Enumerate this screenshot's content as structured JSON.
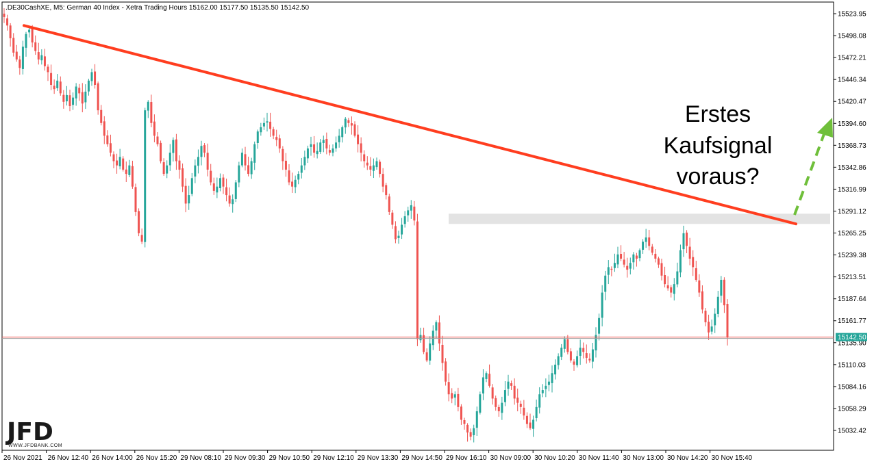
{
  "header": {
    "text": ".DE30CashXE, M5:  German 40 Index  - Xetra Trading Hours  15162.00 15177.50 15135.50 15142.50"
  },
  "logo": {
    "main": "JFD",
    "sub": "WWW.JFDBANK.COM"
  },
  "annotation": {
    "lines": [
      "Erstes",
      "Kaufsignal",
      "voraus?"
    ]
  },
  "colors": {
    "bull": "#26a69a",
    "bear": "#ef5350",
    "trendline": "#ff3d1f",
    "arrow": "#6fbf3a",
    "resistance_zone": "#e3e3e3",
    "price_line": "#ef5350",
    "price_tag": "#26a69a"
  },
  "chart_data": {
    "type": "candlestick",
    "symbol": ".DE30CashXE",
    "timeframe": "M5",
    "ohlc_header": {
      "open": 15162.0,
      "high": 15177.5,
      "low": 15135.5,
      "close": 15142.5
    },
    "ylim": [
      15010,
      15535
    ],
    "y_ticks": [
      "15523.95",
      "15498.08",
      "15472.21",
      "15446.34",
      "15420.47",
      "15394.60",
      "15368.73",
      "15342.86",
      "15316.99",
      "15291.12",
      "15265.25",
      "15239.38",
      "15213.51",
      "15187.64",
      "15161.77",
      "15135.90",
      "15110.03",
      "15084.16",
      "15058.29",
      "15032.42"
    ],
    "x_ticks": [
      "26 Nov 2021",
      "26 Nov 12:40",
      "26 Nov 14:00",
      "26 Nov 15:20",
      "29 Nov 08:10",
      "29 Nov 09:30",
      "29 Nov 10:50",
      "29 Nov 12:10",
      "29 Nov 13:30",
      "29 Nov 14:50",
      "29 Nov 16:10",
      "30 Nov 09:00",
      "30 Nov 10:20",
      "30 Nov 11:40",
      "30 Nov 13:00",
      "30 Nov 14:20",
      "30 Nov 15:40"
    ],
    "current_price": "15142.50",
    "current_price_value": 15142.5,
    "resistance_zone": {
      "low": 15276,
      "high": 15288
    },
    "trendline": {
      "start_value": 15510,
      "end_value": 15276
    },
    "path": [
      15520,
      15510,
      15495,
      15478,
      15470,
      15460,
      15485,
      15500,
      15505,
      15490,
      15480,
      15470,
      15475,
      15462,
      15455,
      15440,
      15435,
      15445,
      15430,
      15420,
      15428,
      15415,
      15425,
      15438,
      15430,
      15418,
      15432,
      15445,
      15455,
      15440,
      15410,
      15395,
      15380,
      15370,
      15360,
      15350,
      15345,
      15355,
      15340,
      15335,
      15345,
      15320,
      15290,
      15265,
      15255,
      15410,
      15420,
      15395,
      15380,
      15370,
      15350,
      15335,
      15345,
      15360,
      15375,
      15350,
      15340,
      15320,
      15300,
      15310,
      15330,
      15345,
      15355,
      15368,
      15360,
      15340,
      15325,
      15315,
      15320,
      15330,
      15320,
      15310,
      15300,
      15305,
      15325,
      15345,
      15360,
      15345,
      15335,
      15350,
      15370,
      15385,
      15390,
      15395,
      15397,
      15388,
      15380,
      15375,
      15365,
      15350,
      15340,
      15325,
      15320,
      15328,
      15335,
      15345,
      15355,
      15365,
      15370,
      15360,
      15362,
      15372,
      15375,
      15365,
      15360,
      15365,
      15372,
      15380,
      15390,
      15400,
      15395,
      15392,
      15380,
      15370,
      15360,
      15350,
      15345,
      15340,
      15345,
      15350,
      15335,
      15320,
      15310,
      15290,
      15275,
      15258,
      15262,
      15275,
      15285,
      15292,
      15298,
      15280,
      15140,
      15145,
      15125,
      15115,
      15135,
      15150,
      15160,
      15135,
      15112,
      15090,
      15075,
      15070,
      15075,
      15060,
      15045,
      15040,
      15030,
      15025,
      15035,
      15055,
      15075,
      15095,
      15100,
      15085,
      15070,
      15060,
      15055,
      15065,
      15080,
      15090,
      15085,
      15070,
      15065,
      15060,
      15050,
      15040,
      15035,
      15045,
      15060,
      15075,
      15080,
      15085,
      15090,
      15100,
      15110,
      15120,
      15130,
      15140,
      15125,
      15115,
      15110,
      15120,
      15130,
      15125,
      15118,
      15115,
      15128,
      15145,
      15165,
      15195,
      15215,
      15225,
      15222,
      15230,
      15240,
      15235,
      15228,
      15222,
      15230,
      15240,
      15235,
      15245,
      15255,
      15260,
      15250,
      15242,
      15235,
      15228,
      15215,
      15205,
      15200,
      15195,
      15205,
      15220,
      15245,
      15265,
      15250,
      15235,
      15225,
      15210,
      15195,
      15175,
      15160,
      15148,
      15155,
      15170,
      15190,
      15210,
      15180,
      15142
    ]
  }
}
